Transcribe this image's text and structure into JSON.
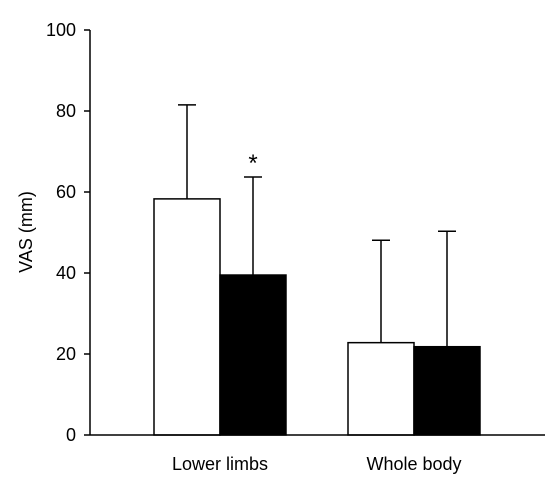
{
  "chart_data": {
    "type": "bar",
    "title": "",
    "xlabel": "",
    "ylabel": "VAS (mm)",
    "ylim": [
      0,
      100
    ],
    "yticks": [
      0,
      20,
      40,
      60,
      80,
      100
    ],
    "grid": false,
    "legend": "none",
    "categories": [
      "Lower limbs",
      "Whole body"
    ],
    "series": [
      {
        "fill": "#ffffff",
        "values": [
          58.3,
          22.8
        ],
        "error_plus": [
          23.2,
          25.3
        ]
      },
      {
        "fill": "#000000",
        "values": [
          39.5,
          21.8
        ],
        "error_plus": [
          24.2,
          28.5
        ]
      }
    ],
    "annotations": [
      {
        "text": "*",
        "category": 0,
        "series": 1
      }
    ]
  }
}
